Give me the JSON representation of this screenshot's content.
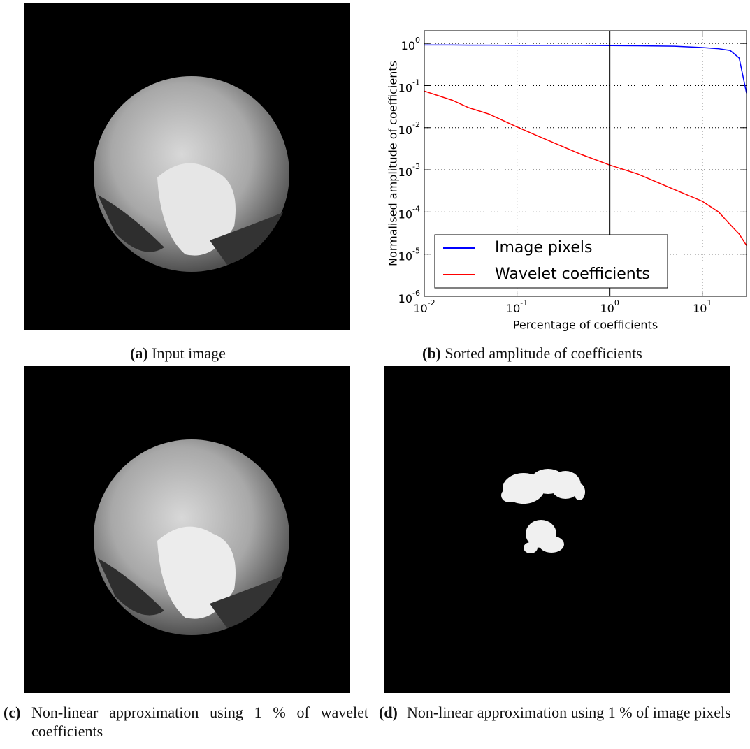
{
  "captions": [
    {
      "label": "(a)",
      "text": "Input image"
    },
    {
      "label": "(b)",
      "text": "Sorted amplitude of coefficients"
    },
    {
      "label": "(c)",
      "text": "Non-linear approximation using 1 % of wavelet coefficients"
    },
    {
      "label": "(d)",
      "text": "Non-linear approximation using 1 % of image pixels"
    }
  ],
  "chart_data": {
    "type": "line",
    "x_label": "Percentage of coefficients",
    "y_label": "Normalised amplitude of coefficients",
    "x_scale": "log",
    "y_scale": "log",
    "xlim": [
      0.01,
      30
    ],
    "ylim": [
      1e-06,
      2
    ],
    "xticks": [
      {
        "value": 0.01,
        "label": "10",
        "exponent": "-2"
      },
      {
        "value": 0.1,
        "label": "10",
        "exponent": "-1"
      },
      {
        "value": 1,
        "label": "10",
        "exponent": "0"
      },
      {
        "value": 10,
        "label": "10",
        "exponent": "1"
      }
    ],
    "yticks": [
      {
        "value": 1e-06,
        "label": "10",
        "exponent": "-6"
      },
      {
        "value": 1e-05,
        "label": "10",
        "exponent": "-5"
      },
      {
        "value": 0.0001,
        "label": "10",
        "exponent": "-4"
      },
      {
        "value": 0.001,
        "label": "10",
        "exponent": "-3"
      },
      {
        "value": 0.01,
        "label": "10",
        "exponent": "-2"
      },
      {
        "value": 0.1,
        "label": "10",
        "exponent": "-1"
      },
      {
        "value": 1,
        "label": "10",
        "exponent": "0"
      }
    ],
    "grid": true,
    "legend_loc": "lower left",
    "x": [
      0.01,
      0.02,
      0.03,
      0.05,
      0.1,
      0.2,
      0.5,
      1,
      2,
      5,
      10,
      15,
      20,
      25,
      30
    ],
    "series": [
      {
        "name": "Image pixels",
        "color": "#0000ff",
        "values": [
          0.92,
          0.92,
          0.91,
          0.91,
          0.9,
          0.9,
          0.9,
          0.89,
          0.88,
          0.86,
          0.8,
          0.75,
          0.68,
          0.45,
          0.066
        ]
      },
      {
        "name": "Wavelet coefficients",
        "color": "#ff0000",
        "values": [
          0.074,
          0.045,
          0.03,
          0.021,
          0.0104,
          0.0054,
          0.0023,
          0.0013,
          0.0008,
          0.00034,
          0.00018,
          0.0001,
          5e-05,
          3e-05,
          1.6e-05
        ]
      }
    ],
    "vlines": [
      {
        "x": 1,
        "color": "#000000"
      }
    ]
  }
}
